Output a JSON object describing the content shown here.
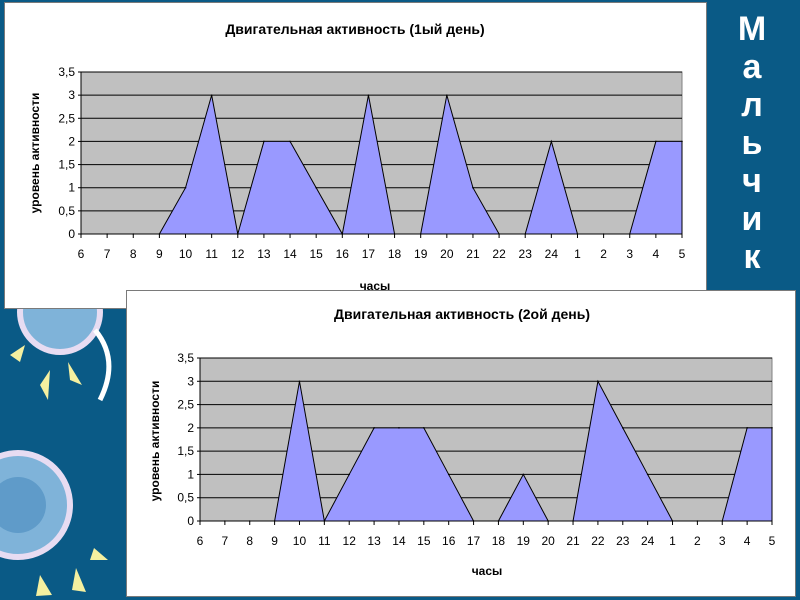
{
  "side_word": [
    "М",
    "а",
    "л",
    "ь",
    "ч",
    "и",
    "к"
  ],
  "colors": {
    "background": "#0a5a86",
    "plot_area": "#c0c0c0",
    "area_fill": "#9999ff",
    "area_stroke": "#000000",
    "grid": "#000000",
    "panel": "#ffffff"
  },
  "chart_data": [
    {
      "type": "area",
      "title": "Двигательная активность (1ый день)",
      "xlabel": "часы",
      "ylabel": "уровень активности",
      "categories": [
        "6",
        "7",
        "8",
        "9",
        "10",
        "11",
        "12",
        "13",
        "14",
        "15",
        "16",
        "17",
        "18",
        "19",
        "20",
        "21",
        "22",
        "23",
        "24",
        "1",
        "2",
        "3",
        "4",
        "5"
      ],
      "values": [
        0,
        0,
        0,
        0,
        1,
        3,
        0,
        2,
        2,
        1,
        0,
        3,
        0,
        0,
        3,
        1,
        0,
        0,
        2,
        0,
        0,
        0,
        2,
        2
      ],
      "ylim": [
        0,
        3.5
      ],
      "yticks": [
        "0",
        "0,5",
        "1",
        "1,5",
        "2",
        "2,5",
        "3",
        "3,5"
      ],
      "grid": true,
      "legend": false
    },
    {
      "type": "area",
      "title": "Двигательная активность (2ой день)",
      "xlabel": "часы",
      "ylabel": "уровень активности",
      "categories": [
        "6",
        "7",
        "8",
        "9",
        "10",
        "11",
        "12",
        "13",
        "14",
        "15",
        "16",
        "17",
        "18",
        "19",
        "20",
        "21",
        "22",
        "23",
        "24",
        "1",
        "2",
        "3",
        "4",
        "5"
      ],
      "values": [
        0,
        0,
        0,
        0,
        3,
        0,
        1,
        2,
        2,
        2,
        1,
        0,
        0,
        1,
        0,
        0,
        3,
        2,
        1,
        0,
        0,
        0,
        2,
        2
      ],
      "ylim": [
        0,
        3.5
      ],
      "yticks": [
        "0",
        "0,5",
        "1",
        "1,5",
        "2",
        "2,5",
        "3",
        "3,5"
      ],
      "grid": true,
      "legend": false
    }
  ]
}
